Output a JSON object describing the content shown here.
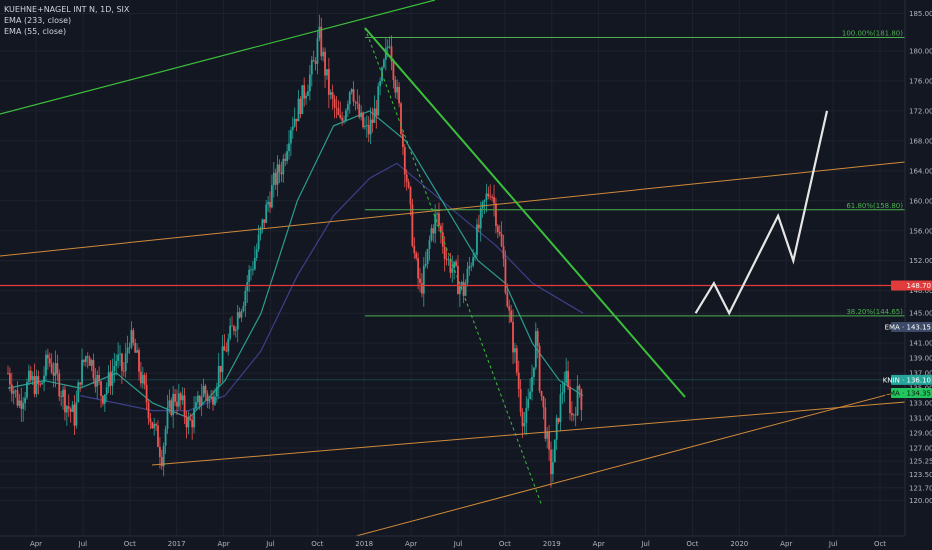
{
  "header": {
    "title": "KUEHNE+NAGEL INT N, 1D, SIX",
    "ema1": "EMA (233, close)",
    "ema2": "EMA (55, close)"
  },
  "colors": {
    "background": "#131722",
    "grid": "#1e222d",
    "candle_up": "#26a69a",
    "candle_down": "#ef5350",
    "ema55": "#2a9d8f",
    "ema233": "#3c3f8a",
    "channel_green": "#3bbf3b",
    "trend_orange": "#d08a3a",
    "resistance_red": "#e23b3b",
    "fib_green": "#4caf50",
    "projection": "#e6e6e6"
  },
  "chart_data": {
    "type": "candlestick",
    "title": "KUEHNE+NAGEL INT N, 1D, SIX",
    "x_tick_labels": [
      "Apr",
      "Jul",
      "Oct",
      "2017",
      "Apr",
      "Jul",
      "Oct",
      "2018",
      "Apr",
      "Jul",
      "Oct",
      "2019",
      "Apr",
      "Jul",
      "Oct",
      "2020",
      "Apr",
      "Jul",
      "Oct"
    ],
    "y_tick_labels": [
      "120.00",
      "121.70",
      "123.50",
      "125.25",
      "127.00",
      "129.00",
      "131.00",
      "133.00",
      "135.00",
      "137.00",
      "139.00",
      "141.00",
      "145.00",
      "148.00",
      "152.00",
      "156.00",
      "160.00",
      "164.00",
      "168.00",
      "172.00",
      "176.00",
      "180.00",
      "185.00"
    ],
    "y_range": [
      119,
      186
    ],
    "series": [
      {
        "name": "EMA (233, close)"
      },
      {
        "name": "EMA (55, close)"
      }
    ],
    "price_path": [
      [
        0,
        137
      ],
      [
        6,
        133
      ],
      [
        12,
        136
      ],
      [
        18,
        135
      ],
      [
        22,
        139
      ],
      [
        26,
        137
      ],
      [
        32,
        133
      ],
      [
        37,
        131
      ],
      [
        40,
        137
      ],
      [
        44,
        140
      ],
      [
        48,
        137
      ],
      [
        52,
        134
      ],
      [
        56,
        136
      ],
      [
        60,
        139
      ],
      [
        64,
        137
      ],
      [
        67,
        142
      ],
      [
        70,
        140
      ],
      [
        74,
        136
      ],
      [
        77,
        133
      ],
      [
        80,
        130
      ],
      [
        83,
        128
      ],
      [
        85,
        126
      ],
      [
        88,
        131
      ],
      [
        92,
        134
      ],
      [
        96,
        133
      ],
      [
        100,
        130
      ],
      [
        104,
        132
      ],
      [
        108,
        135
      ],
      [
        112,
        133
      ],
      [
        116,
        137
      ],
      [
        120,
        140
      ],
      [
        123,
        142
      ],
      [
        127,
        145
      ],
      [
        130,
        147
      ],
      [
        133,
        150
      ],
      [
        136,
        152
      ],
      [
        140,
        156
      ],
      [
        144,
        160
      ],
      [
        148,
        163
      ],
      [
        152,
        165
      ],
      [
        156,
        170
      ],
      [
        160,
        172
      ],
      [
        163,
        174
      ],
      [
        166,
        176
      ],
      [
        169,
        178
      ],
      [
        172,
        182
      ],
      [
        175,
        178
      ],
      [
        178,
        174
      ],
      [
        181,
        172
      ],
      [
        184,
        170
      ],
      [
        187,
        173
      ],
      [
        190,
        176
      ],
      [
        193,
        172
      ],
      [
        196,
        170
      ],
      [
        199,
        169
      ],
      [
        202,
        171
      ],
      [
        205,
        174
      ],
      [
        208,
        178
      ],
      [
        211,
        182
      ],
      [
        214,
        176
      ],
      [
        217,
        171
      ],
      [
        219,
        166
      ],
      [
        221,
        162
      ],
      [
        223,
        157
      ],
      [
        225,
        152
      ],
      [
        228,
        148
      ],
      [
        231,
        151
      ],
      [
        234,
        156
      ],
      [
        237,
        158
      ],
      [
        240,
        155
      ],
      [
        243,
        152
      ],
      [
        246,
        151
      ],
      [
        249,
        149
      ],
      [
        252,
        148
      ],
      [
        255,
        151
      ],
      [
        258,
        154
      ],
      [
        261,
        157
      ],
      [
        264,
        160
      ],
      [
        267,
        162
      ],
      [
        270,
        158
      ],
      [
        272,
        155
      ],
      [
        274,
        152
      ],
      [
        276,
        147
      ],
      [
        278,
        143
      ],
      [
        280,
        140
      ],
      [
        282,
        136
      ],
      [
        284,
        132
      ],
      [
        286,
        130
      ],
      [
        288,
        133
      ],
      [
        290,
        137
      ],
      [
        292,
        142
      ],
      [
        294,
        136
      ],
      [
        296,
        132
      ],
      [
        298,
        128
      ],
      [
        300,
        124
      ],
      [
        302,
        126
      ],
      [
        304,
        131
      ],
      [
        306,
        134
      ],
      [
        308,
        137
      ],
      [
        310,
        134
      ],
      [
        312,
        131
      ],
      [
        314,
        133
      ],
      [
        316,
        135
      ],
      [
        318,
        132
      ]
    ],
    "ema55": [
      [
        0,
        135
      ],
      [
        20,
        136
      ],
      [
        40,
        135
      ],
      [
        60,
        137
      ],
      [
        80,
        133
      ],
      [
        100,
        131
      ],
      [
        120,
        136
      ],
      [
        140,
        145
      ],
      [
        160,
        160
      ],
      [
        180,
        170
      ],
      [
        200,
        172
      ],
      [
        220,
        168
      ],
      [
        240,
        160
      ],
      [
        260,
        152
      ],
      [
        275,
        149
      ],
      [
        290,
        141
      ],
      [
        305,
        136
      ],
      [
        318,
        134
      ]
    ],
    "ema233": [
      [
        40,
        134
      ],
      [
        60,
        133
      ],
      [
        80,
        132
      ],
      [
        100,
        132
      ],
      [
        120,
        134
      ],
      [
        140,
        140
      ],
      [
        160,
        150
      ],
      [
        180,
        158
      ],
      [
        200,
        163
      ],
      [
        215,
        165
      ],
      [
        230,
        162
      ],
      [
        250,
        158
      ],
      [
        270,
        154
      ],
      [
        290,
        149
      ],
      [
        318,
        145
      ]
    ],
    "annotations": {
      "fib_levels": [
        {
          "label": "100.00%(181.80)",
          "value": 181.8
        },
        {
          "label": "61.80%(158.80)",
          "value": 158.8
        },
        {
          "label": "38.20%(144.65)",
          "value": 144.65
        }
      ],
      "resistance": 148.7,
      "projection": [
        [
          225,
          145
        ],
        [
          231,
          149
        ],
        [
          236,
          145
        ],
        [
          252,
          158
        ],
        [
          257,
          152
        ],
        [
          268,
          172
        ]
      ]
    },
    "price_tags": [
      {
        "label": "148.70",
        "value": 148.7,
        "bg": "#e23b3b",
        "fg": "#ffffff"
      },
      {
        "label": "EMA · 143.15",
        "value": 143.15,
        "bg": "#3c4a68",
        "fg": "#ffffff"
      },
      {
        "label": "KNIN · 136.10",
        "value": 136.1,
        "bg": "#26a69a",
        "fg": "#ffffff"
      },
      {
        "label": "EMA · 134.35",
        "value": 134.35,
        "bg": "#22c55e",
        "fg": "#0b1a10"
      }
    ]
  }
}
